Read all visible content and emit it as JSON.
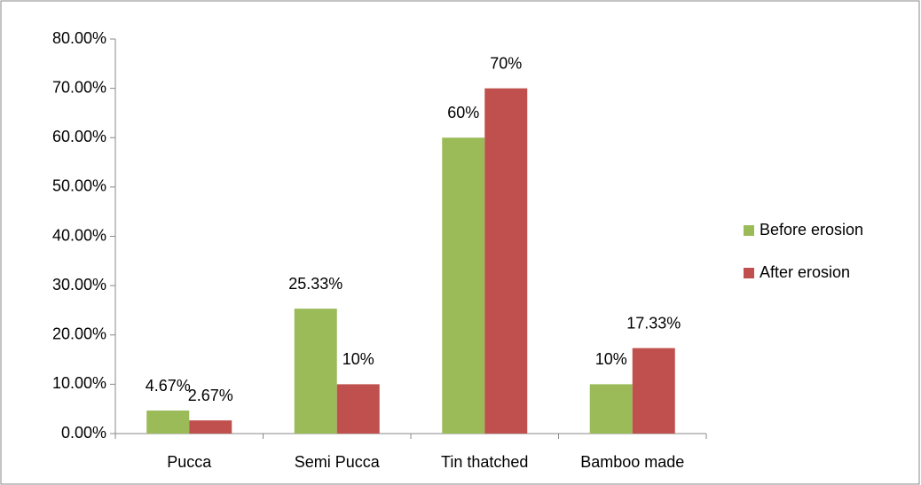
{
  "chart_data": {
    "type": "bar",
    "categories": [
      "Pucca",
      "Semi Pucca",
      "Tin thatched",
      "Bamboo made"
    ],
    "series": [
      {
        "name": "Before erosion",
        "color": "#9bbb59",
        "values": [
          4.67,
          25.33,
          60,
          10
        ],
        "value_labels": [
          "4.67%",
          "25.33%",
          "60%",
          "10%"
        ]
      },
      {
        "name": "After erosion",
        "color": "#c0504d",
        "values": [
          2.67,
          10,
          70,
          17.33
        ],
        "value_labels": [
          "2.67%",
          "10%",
          "70%",
          "17.33%"
        ]
      }
    ],
    "ylim": [
      0,
      80
    ],
    "yticks": [
      {
        "value": 0,
        "label": "0.00%"
      },
      {
        "value": 10,
        "label": "10.00%"
      },
      {
        "value": 20,
        "label": "20.00%"
      },
      {
        "value": 30,
        "label": "30.00%"
      },
      {
        "value": 40,
        "label": "40.00%"
      },
      {
        "value": 50,
        "label": "50.00%"
      },
      {
        "value": 60,
        "label": "60.00%"
      },
      {
        "value": 70,
        "label": "70.00%"
      },
      {
        "value": 80,
        "label": "80.00%"
      }
    ],
    "grid": false,
    "legend": "right"
  }
}
